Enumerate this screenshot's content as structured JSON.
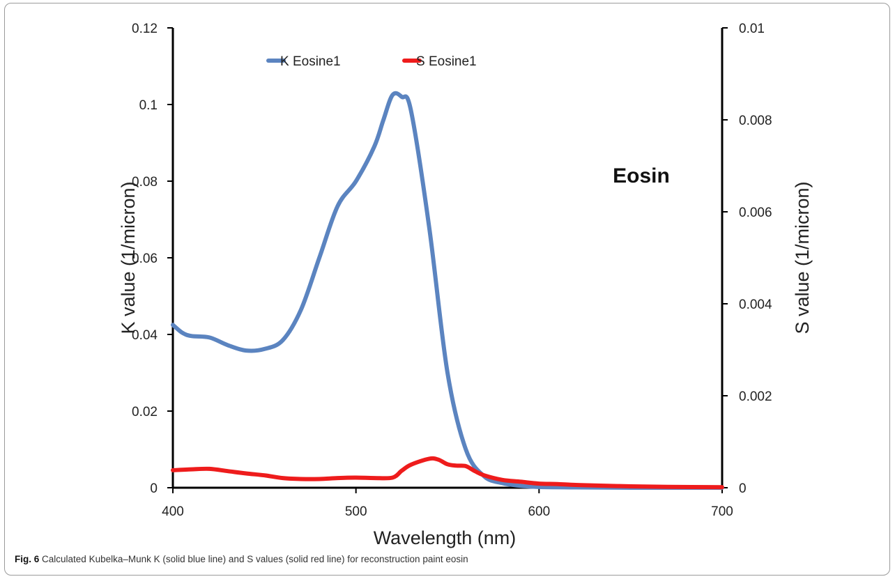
{
  "chart_data": {
    "type": "line",
    "title": "",
    "xlabel": "Wavelength (nm)",
    "ylabel_left": "K value (1/micron)",
    "ylabel_right": "S value (1/micron)",
    "xlim": [
      400,
      700
    ],
    "ylim_left": [
      0,
      0.12
    ],
    "ylim_right": [
      0,
      0.01
    ],
    "x_ticks": [
      400,
      500,
      600,
      700
    ],
    "y_left_ticks": [
      "0",
      "0.02",
      "0.04",
      "0.06",
      "0.08",
      "0.1",
      "0.12"
    ],
    "y_right_ticks": [
      "0",
      "0.002",
      "0.004",
      "0.006",
      "0.008",
      "0.01"
    ],
    "grid": false,
    "legend_position": "top-center",
    "annotation": "Eosin",
    "series": [
      {
        "name": "K Eosine1",
        "axis": "left",
        "color": "#5b84c0",
        "x": [
          400,
          405,
          410,
          420,
          430,
          440,
          450,
          460,
          470,
          480,
          490,
          500,
          510,
          515,
          520,
          525,
          530,
          540,
          550,
          560,
          570,
          580,
          590,
          600,
          620,
          650,
          700
        ],
        "y": [
          0.0425,
          0.0405,
          0.0396,
          0.0392,
          0.0372,
          0.0358,
          0.0362,
          0.0385,
          0.0465,
          0.06,
          0.0735,
          0.08,
          0.089,
          0.096,
          0.1025,
          0.102,
          0.0985,
          0.068,
          0.03,
          0.01,
          0.003,
          0.0012,
          0.0005,
          0.0002,
          0.0001,
          0.0,
          0.0
        ]
      },
      {
        "name": "S Eosine1",
        "axis": "right",
        "color": "#ee1c1c",
        "x": [
          400,
          410,
          420,
          430,
          440,
          450,
          460,
          470,
          480,
          490,
          500,
          510,
          520,
          525,
          530,
          540,
          545,
          550,
          555,
          560,
          565,
          570,
          580,
          590,
          600,
          610,
          620,
          630,
          650,
          670,
          700
        ],
        "y": [
          0.00038,
          0.0004,
          0.00041,
          0.00036,
          0.00031,
          0.00027,
          0.00021,
          0.00019,
          0.00019,
          0.00021,
          0.00022,
          0.00021,
          0.00022,
          0.00037,
          0.0005,
          0.00063,
          0.00061,
          0.00051,
          0.00048,
          0.00047,
          0.00036,
          0.00027,
          0.00017,
          0.00013,
          9e-05,
          8e-05,
          6e-05,
          5e-05,
          3e-05,
          2e-05,
          1e-05
        ]
      }
    ]
  },
  "caption": {
    "label": "Fig. 6",
    "text": "Calculated Kubelka–Munk K (solid blue line) and S values (solid red line) for reconstruction paint eosin"
  }
}
